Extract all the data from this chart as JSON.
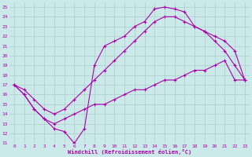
{
  "xlabel": "Windchill (Refroidissement éolien,°C)",
  "xlim": [
    -0.5,
    23.5
  ],
  "ylim": [
    11,
    25.5
  ],
  "xticks": [
    0,
    1,
    2,
    3,
    4,
    5,
    6,
    7,
    8,
    9,
    10,
    11,
    12,
    13,
    14,
    15,
    16,
    17,
    18,
    19,
    20,
    21,
    22,
    23
  ],
  "yticks": [
    11,
    12,
    13,
    14,
    15,
    16,
    17,
    18,
    19,
    20,
    21,
    22,
    23,
    24,
    25
  ],
  "bg_color": "#cbe9e9",
  "line_color": "#aa00aa",
  "grid_color": "#aacccc",
  "lines": [
    {
      "x": [
        0,
        1,
        2,
        3,
        4,
        5,
        6,
        7,
        8,
        9,
        10,
        11,
        12,
        13,
        14,
        15,
        16,
        17,
        18,
        19,
        20,
        21,
        22,
        23
      ],
      "y": [
        17,
        16,
        14.5,
        13.5,
        12.5,
        12.2,
        11.0,
        12.5,
        19.0,
        21.0,
        21.5,
        22.0,
        23.0,
        23.5,
        24.8,
        25.0,
        24.8,
        24.5,
        23.0,
        22.5,
        21.5,
        20.5,
        19.0,
        17.5
      ]
    },
    {
      "x": [
        0,
        1,
        2,
        3,
        4,
        5,
        6,
        7,
        8,
        9,
        10,
        11,
        12,
        13,
        14,
        15,
        16,
        17,
        18,
        19,
        20,
        21,
        22,
        23
      ],
      "y": [
        17,
        16.5,
        15.5,
        14.5,
        14.0,
        14.5,
        15.5,
        16.5,
        17.5,
        18.5,
        19.5,
        20.5,
        21.5,
        22.5,
        23.5,
        24.0,
        24.0,
        23.5,
        23.0,
        22.5,
        22.0,
        21.5,
        20.5,
        17.5
      ]
    },
    {
      "x": [
        0,
        1,
        2,
        3,
        4,
        5,
        6,
        7,
        8,
        9,
        10,
        11,
        12,
        13,
        14,
        15,
        16,
        17,
        18,
        19,
        20,
        21,
        22,
        23
      ],
      "y": [
        17,
        16,
        14.5,
        13.5,
        13.0,
        13.5,
        14.0,
        14.5,
        15.0,
        15.0,
        15.5,
        16.0,
        16.5,
        16.5,
        17.0,
        17.5,
        17.5,
        18.0,
        18.5,
        18.5,
        19.0,
        19.5,
        17.5,
        17.5
      ]
    }
  ]
}
